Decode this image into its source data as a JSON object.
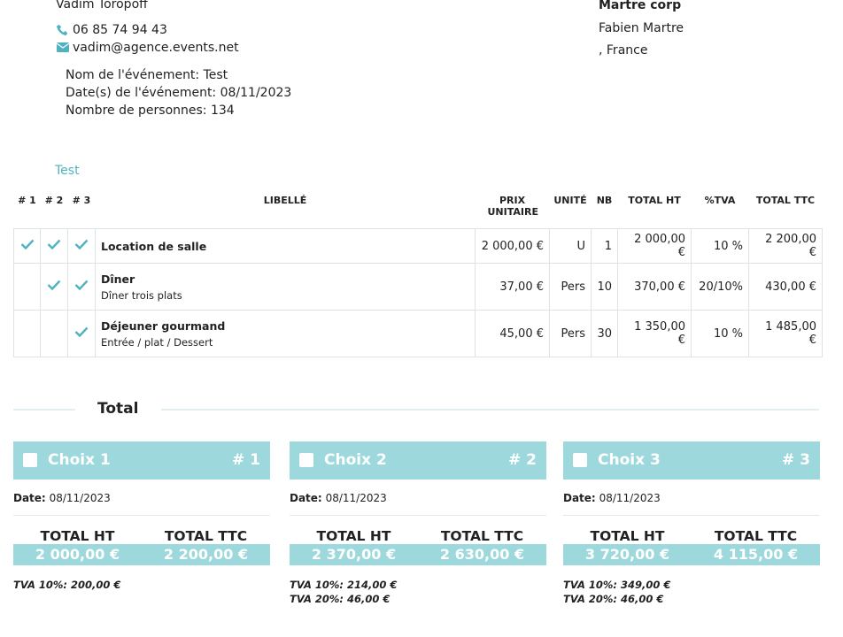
{
  "sender": {
    "name": "Vadim Toropoff",
    "phone": "06 85 74 94 43",
    "email": "vadim@agence.events.net"
  },
  "event": {
    "name": "Nom de l'événement: Test",
    "dates": "Date(s) de l'événement: 08/11/2023",
    "people": "Nombre de personnes: 134"
  },
  "client": {
    "company": "Martre corp",
    "contact": "Fabien Martre",
    "country": ", France"
  },
  "section_title": "Test",
  "table": {
    "headers": [
      "# 1",
      "# 2",
      "# 3",
      "LIBELLÉ",
      "PRIX UNITAIRE",
      "UNITÉ",
      "NB",
      "TOTAL HT",
      "%TVA",
      "TOTAL TTC"
    ],
    "rows": [
      {
        "choices": [
          true,
          true,
          true
        ],
        "label": "Location de salle",
        "unit_price": "2 000,00 €",
        "unit": "U",
        "qty": "1",
        "total_ht": "2 000,00 €",
        "vat": "10 %",
        "total_ttc": "2 200,00 €"
      },
      {
        "choices": [
          false,
          true,
          true
        ],
        "label": "Dîner",
        "description": "Dîner trois plats",
        "unit_price": "37,00 €",
        "unit": "Pers",
        "qty": "10",
        "total_ht": "370,00 €",
        "vat": "20/10%",
        "total_ttc": "430,00 €"
      },
      {
        "choices": [
          false,
          false,
          true
        ],
        "label": "Déjeuner gourmand",
        "description": "Entrée / plat / Dessert",
        "unit_price": "45,00 €",
        "unit": "Pers",
        "qty": "30",
        "total_ht": "1 350,00 €",
        "vat": "10 %",
        "total_ttc": "1 485,00 €"
      }
    ]
  },
  "total": {
    "title": "Total",
    "options": [
      {
        "title": "Choix 1",
        "number": "# 1",
        "date_label": "Date:",
        "date": "08/11/2023",
        "ht_label": "TOTAL HT",
        "ttc_label": "TOTAL TTC",
        "ht": "2 000,00 €",
        "ttc": "2 200,00 €",
        "taxes": [
          "TVA 10%: 200,00 €"
        ]
      },
      {
        "title": "Choix 2",
        "number": "# 2",
        "date_label": "Date:",
        "date": "08/11/2023",
        "ht_label": "TOTAL HT",
        "ttc_label": "TOTAL TTC",
        "ht": "2 370,00 €",
        "ttc": "2 630,00 €",
        "taxes": [
          "TVA 10%: 214,00 €",
          "TVA 20%: 46,00 €"
        ]
      },
      {
        "title": "Choix 3",
        "number": "# 3",
        "date_label": "Date:",
        "date": "08/11/2023",
        "ht_label": "TOTAL HT",
        "ttc_label": "TOTAL TTC",
        "ht": "3 720,00 €",
        "ttc": "4 115,00 €",
        "taxes": [
          "TVA 10%: 349,00 €",
          "TVA 20%: 46,00 €"
        ]
      }
    ]
  }
}
